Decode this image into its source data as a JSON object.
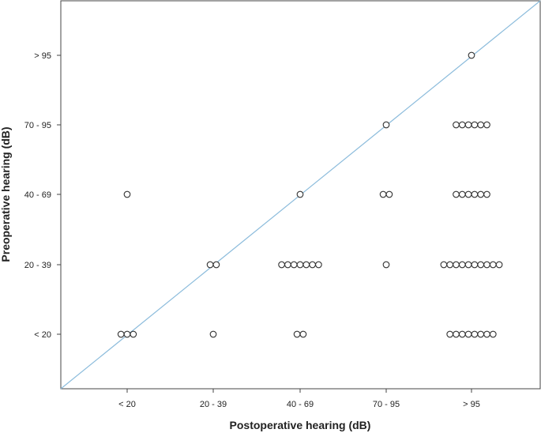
{
  "chart_data": {
    "type": "scatter",
    "xlabel": "Postoperative hearing (dB)",
    "ylabel": "Preoperative hearing (dB)",
    "x_categories": [
      "< 20",
      "20 - 39",
      "40 - 69",
      "70 - 95",
      "> 95"
    ],
    "y_categories": [
      "< 20",
      "20 - 39",
      "40 - 69",
      "70 - 95",
      "> 95"
    ],
    "grid": false,
    "legend": "none",
    "reference_line": {
      "type": "diagonal",
      "color": "#8cbcdc"
    },
    "marker": {
      "shape": "hollow-circle",
      "stroke": "#333333"
    },
    "cells": [
      {
        "x": "< 20",
        "y": "< 20",
        "count": 3
      },
      {
        "x": "20 - 39",
        "y": "< 20",
        "count": 1
      },
      {
        "x": "40 - 69",
        "y": "< 20",
        "count": 2
      },
      {
        "x": "> 95",
        "y": "< 20",
        "count": 8
      },
      {
        "x": "20 - 39",
        "y": "20 - 39",
        "count": 2
      },
      {
        "x": "40 - 69",
        "y": "20 - 39",
        "count": 7
      },
      {
        "x": "70 - 95",
        "y": "20 - 39",
        "count": 1
      },
      {
        "x": "> 95",
        "y": "20 - 39",
        "count": 10
      },
      {
        "x": "< 20",
        "y": "40 - 69",
        "count": 1
      },
      {
        "x": "40 - 69",
        "y": "40 - 69",
        "count": 1
      },
      {
        "x": "70 - 95",
        "y": "40 - 69",
        "count": 2
      },
      {
        "x": "> 95",
        "y": "40 - 69",
        "count": 6
      },
      {
        "x": "70 - 95",
        "y": "70 - 95",
        "count": 1
      },
      {
        "x": "> 95",
        "y": "70 - 95",
        "count": 6
      },
      {
        "x": "> 95",
        "y": "> 95",
        "count": 1
      }
    ]
  }
}
